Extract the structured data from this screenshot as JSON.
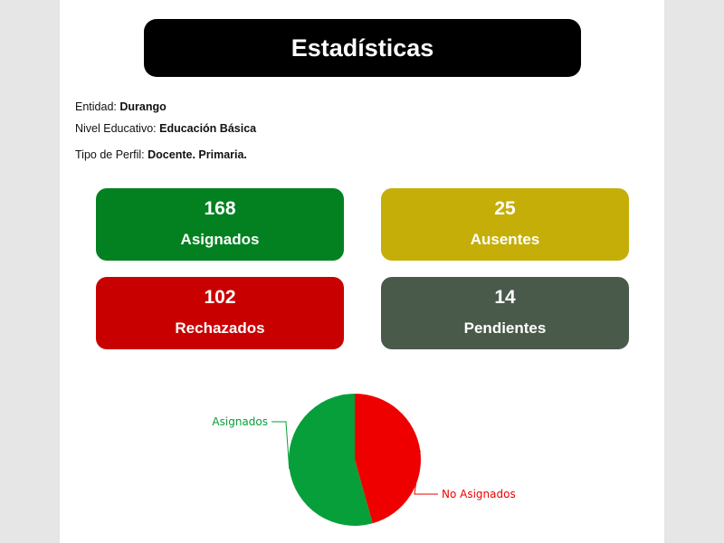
{
  "header": {
    "title": "Estadísticas"
  },
  "info": {
    "entidad_label": "Entidad:",
    "entidad_value": "Durango",
    "nivel_label": "Nivel Educativo:",
    "nivel_value": "Educación Básica",
    "perfil_label": "Tipo de Perfil:",
    "perfil_value": "Docente. Primaria."
  },
  "cards": {
    "asignados": {
      "value": "168",
      "label": "Asignados",
      "color": "#038121"
    },
    "ausentes": {
      "value": "25",
      "label": "Ausentes",
      "color": "#c6ae09"
    },
    "rechazados": {
      "value": "102",
      "label": "Rechazados",
      "color": "#c90000"
    },
    "pendientes": {
      "value": "14",
      "label": "Pendientes",
      "color": "#4a5a4a"
    }
  },
  "chart_data": {
    "type": "pie",
    "slices": [
      {
        "label": "Asignados",
        "value": 168,
        "color": "#079f39"
      },
      {
        "label": "No Asignados",
        "value": 141,
        "color": "#ee0000"
      }
    ],
    "legend": "none",
    "label_placement": "outside-with-leader-lines"
  }
}
